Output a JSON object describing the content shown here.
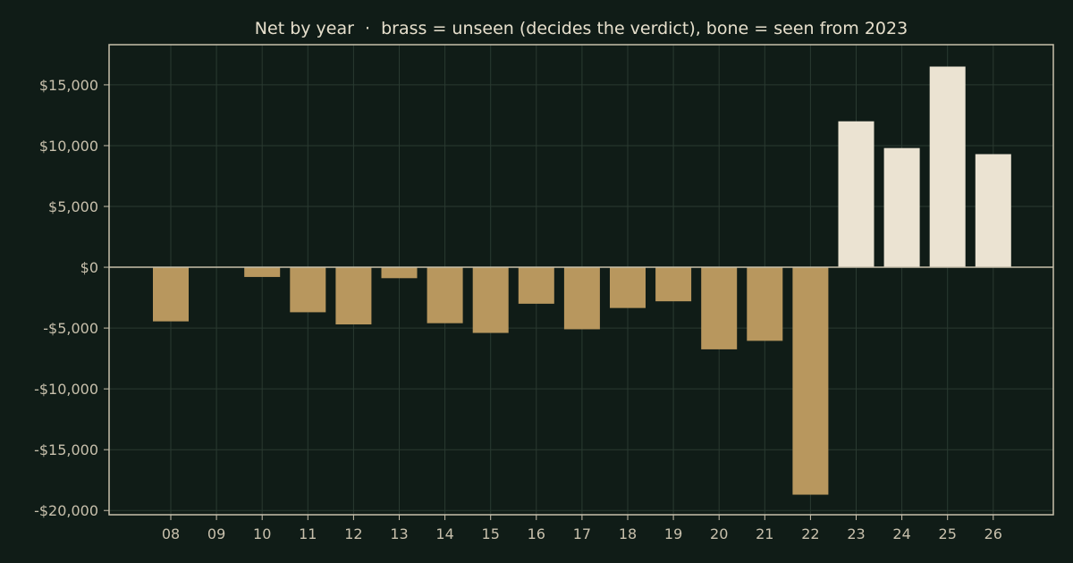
{
  "chart_data": {
    "type": "bar",
    "title": "Net by year  ·  brass = unseen (decides the verdict), bone = seen from 2023",
    "xlabel": "",
    "ylabel": "",
    "categories": [
      "08",
      "09",
      "10",
      "11",
      "12",
      "13",
      "14",
      "15",
      "16",
      "17",
      "18",
      "19",
      "20",
      "21",
      "22",
      "23",
      "24",
      "25",
      "26"
    ],
    "values": [
      -4450,
      0,
      -800,
      -3700,
      -4700,
      -900,
      -4600,
      -5400,
      -3000,
      -5100,
      -3350,
      -2800,
      -6750,
      -6050,
      -18700,
      12000,
      9800,
      16500,
      9300
    ],
    "groups": [
      "unseen",
      "unseen",
      "unseen",
      "unseen",
      "unseen",
      "unseen",
      "unseen",
      "unseen",
      "unseen",
      "unseen",
      "unseen",
      "unseen",
      "unseen",
      "unseen",
      "unseen",
      "seen",
      "seen",
      "seen",
      "seen"
    ],
    "ylim": [
      -20350,
      18300
    ],
    "yticks": [
      15000,
      10000,
      5000,
      0,
      -5000,
      -10000,
      -15000,
      -20000
    ],
    "ytick_labels": [
      "$15,000",
      "$10,000",
      "$5,000",
      "$0",
      "-$5,000",
      "-$10,000",
      "-$15,000",
      "-$20,000"
    ],
    "grid": true,
    "colors": {
      "background": "#101c17",
      "unseen": "#b8975e",
      "seen": "#ebe3d2",
      "axis": "#c8c0ac",
      "grid": "#2a3a31",
      "text": "#e6dfcc",
      "tick_text": "#c8c0ac"
    }
  }
}
